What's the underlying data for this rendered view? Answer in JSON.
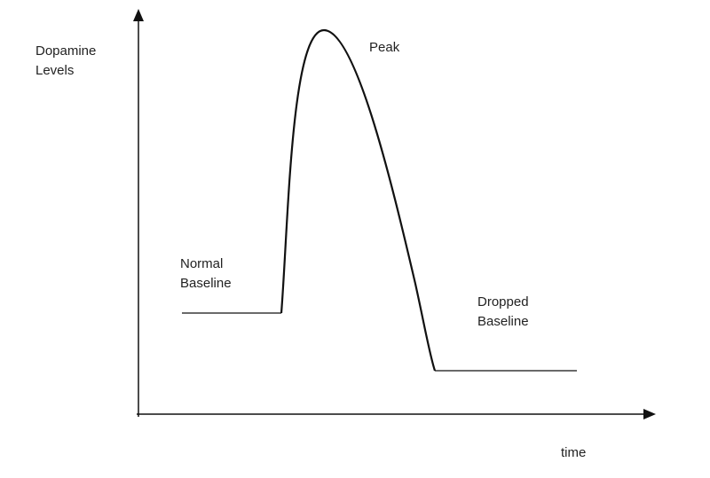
{
  "y_axis_label": "Dopamine Levels",
  "x_axis_label": "time",
  "annotations": {
    "peak": "Peak",
    "normal_baseline": "Normal Baseline",
    "dropped_baseline": "Dropped Baseline"
  }
}
